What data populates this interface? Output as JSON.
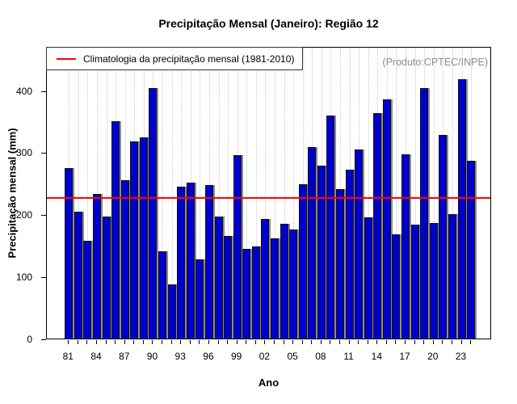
{
  "title": "Precipitação Mensal (Janeiro): Região 12",
  "annotation": "(Produto:CPTEC/INPE)",
  "legend": {
    "label": "Climatologia da precipitação mensal (1981-2010)"
  },
  "axes": {
    "x_label": "Ano",
    "y_label": "Precipitação mensal (mm)",
    "y_ticks": [
      0,
      100,
      200,
      300,
      400
    ],
    "x_tick_labels": [
      "81",
      "84",
      "87",
      "90",
      "93",
      "96",
      "99",
      "02",
      "05",
      "08",
      "11",
      "14",
      "17",
      "20",
      "23"
    ]
  },
  "colors": {
    "bar": "#0000CD",
    "bar_border": "#111111",
    "bar_shadow": "#8c8c8c",
    "climatology_line": "#ff0000",
    "grid": "#c9c9c9",
    "annotation_text": "#8c8c8c"
  },
  "chart_data": {
    "type": "bar",
    "title": "Precipitação Mensal (Janeiro): Região 12",
    "xlabel": "Ano",
    "ylabel": "Precipitação mensal (mm)",
    "x": [
      1981,
      1982,
      1983,
      1984,
      1985,
      1986,
      1987,
      1988,
      1989,
      1990,
      1991,
      1992,
      1993,
      1994,
      1995,
      1996,
      1997,
      1998,
      1999,
      2000,
      2001,
      2002,
      2003,
      2004,
      2005,
      2006,
      2007,
      2008,
      2009,
      2010,
      2011,
      2012,
      2013,
      2014,
      2015,
      2016,
      2017,
      2018,
      2019,
      2020,
      2021,
      2022,
      2023,
      2024
    ],
    "values": [
      274,
      204,
      157,
      233,
      197,
      350,
      255,
      317,
      324,
      403,
      140,
      87,
      244,
      251,
      127,
      247,
      197,
      165,
      296,
      145,
      148,
      192,
      161,
      185,
      176,
      248,
      309,
      278,
      359,
      241,
      272,
      305,
      195,
      363,
      385,
      168,
      297,
      184,
      403,
      186,
      328,
      201,
      418,
      286
    ],
    "climatology_value": 230,
    "climatology_label": "Climatologia da precipitação mensal (1981-2010)",
    "ylim": [
      0,
      471
    ],
    "y_ticks": [
      0,
      100,
      200,
      300,
      400
    ],
    "x_tick_step": 3,
    "grid": "vertical-dotted",
    "legend_position": "top-left",
    "annotation": "(Produto:CPTEC/INPE)"
  }
}
